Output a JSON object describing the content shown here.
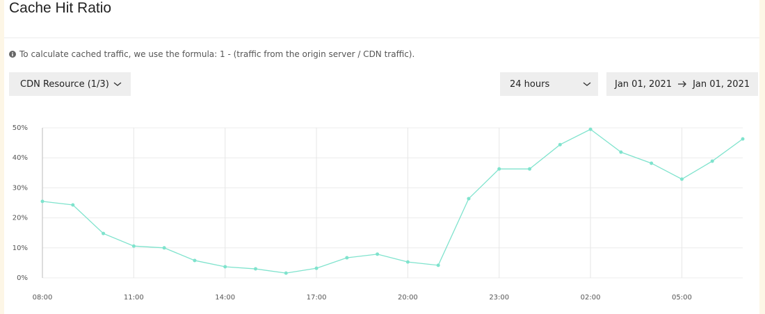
{
  "header": {
    "title": "Cache Hit Ratio"
  },
  "info": "To calculate cached traffic, we use the formula: 1 - (traffic from the origin server / CDN traffic).",
  "controls": {
    "resource": "CDN Resource (1/3)",
    "period": "24 hours",
    "date_start": "Jan 01, 2021",
    "date_end": "Jan 01, 2021"
  },
  "chart_data": {
    "type": "line",
    "categories": [
      "08:00",
      null,
      null,
      "11:00",
      null,
      null,
      "14:00",
      null,
      null,
      "17:00",
      null,
      null,
      "20:00",
      null,
      null,
      "23:00",
      null,
      null,
      "02:00",
      null,
      null,
      "05:00",
      null,
      null
    ],
    "series": [
      {
        "name": "Cache Hit Ratio",
        "color": "#7fe3cd",
        "values": [
          25.5,
          24.3,
          14.8,
          10.6,
          10.0,
          5.8,
          3.7,
          3.0,
          1.6,
          3.2,
          6.7,
          7.9,
          5.3,
          4.2,
          26.4,
          36.3,
          36.3,
          44.4,
          49.5,
          41.9,
          38.2,
          32.9,
          38.9,
          46.3
        ]
      }
    ],
    "ylim": [
      0,
      50
    ],
    "yticks": [
      {
        "value": 0,
        "label": "0%"
      },
      {
        "value": 10,
        "label": "10%"
      },
      {
        "value": 20,
        "label": "20%"
      },
      {
        "value": 30,
        "label": "30%"
      },
      {
        "value": 40,
        "label": "40%"
      },
      {
        "value": 50,
        "label": "50%"
      }
    ],
    "grid": true
  }
}
